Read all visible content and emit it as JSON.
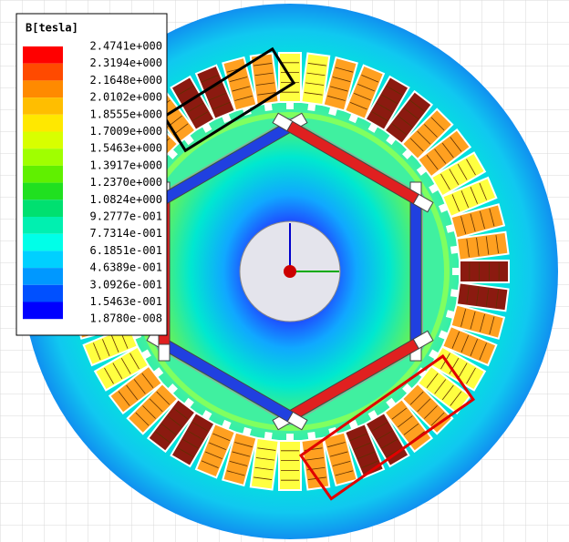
{
  "legend": {
    "title": "B[tesla]",
    "levels": [
      "2.4741e+000",
      "2.3194e+000",
      "2.1648e+000",
      "2.0102e+000",
      "1.8555e+000",
      "1.7009e+000",
      "1.5463e+000",
      "1.3917e+000",
      "1.2370e+000",
      "1.0824e+000",
      "9.2777e-001",
      "7.7314e-001",
      "6.1851e-001",
      "4.6389e-001",
      "3.0926e-001",
      "1.5463e-001",
      "1.8780e-008"
    ],
    "colors": [
      "#ff0000",
      "#ff4a00",
      "#ff8a00",
      "#ffbe00",
      "#ffe800",
      "#d8ff00",
      "#a0ff00",
      "#60f000",
      "#20e020",
      "#00e070",
      "#00f0b0",
      "#00ffe8",
      "#00d0ff",
      "#0098ff",
      "#0050ff",
      "#0000ff"
    ]
  }
}
